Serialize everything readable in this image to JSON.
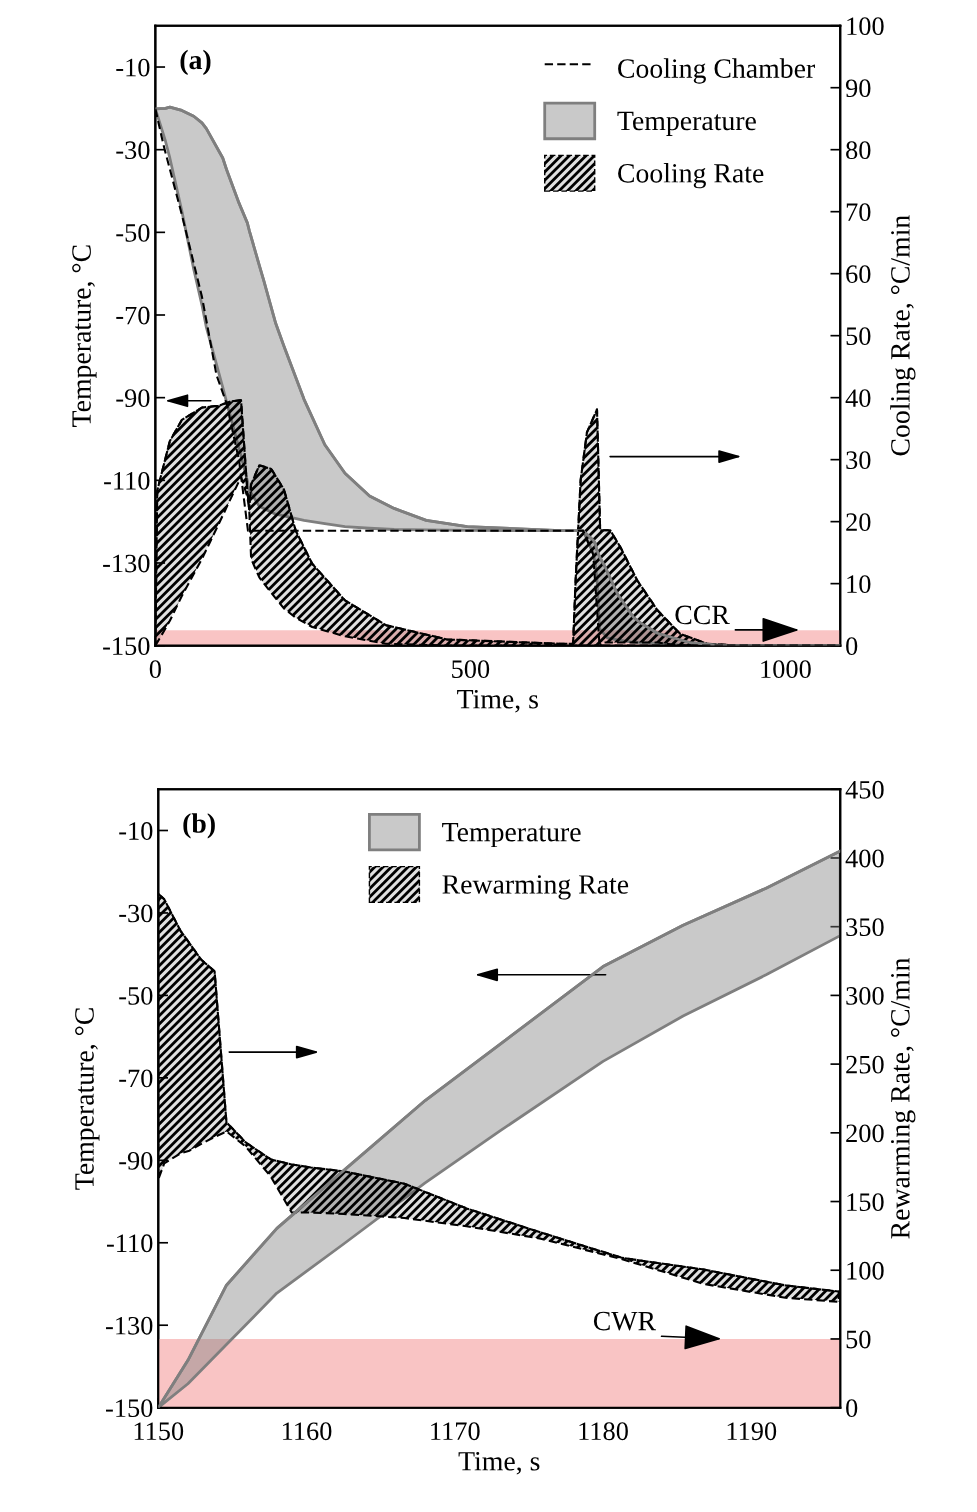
{
  "chart_data": [
    {
      "type": "line",
      "xlabel": "Time, s",
      "ylabel": "Temperature, °C",
      "y2label": "Cooling Rate, °C/min",
      "xlim": [
        0,
        1087
      ],
      "xticks": [
        0,
        {
          "value": 100,
          "label": null
        },
        {
          "value": 200,
          "label": null
        },
        {
          "value": 300,
          "label": null
        },
        {
          "value": 400,
          "label": null
        },
        500,
        {
          "value": 600,
          "label": null
        },
        {
          "value": 700,
          "label": null
        },
        {
          "value": 800,
          "label": null
        },
        {
          "value": 900,
          "label": null
        },
        1000
      ],
      "ylim": [
        -150,
        0
      ],
      "yticks": [
        -150,
        -130,
        -110,
        -90,
        -70,
        -50,
        -30,
        -10
      ],
      "y2lim": [
        0,
        100
      ],
      "y2ticks": [
        0,
        10,
        20,
        30,
        40,
        50,
        60,
        70,
        80,
        90,
        100
      ],
      "grid": false,
      "legend": "top right",
      "bands": [
        {
          "axis": "y2",
          "from": 0,
          "to": 2.5,
          "color": "#f9c4c4"
        }
      ],
      "annotations": [
        "(a)",
        {
          "text": "CCR",
          "x": 1022,
          "y": -146.2
        }
      ],
      "series": [
        {
          "name": "Cooling Rate",
          "axis": "y2",
          "color": "#000000",
          "line_style": "dashed",
          "x": [
            0,
            3,
            23,
            42,
            74,
            100,
            120,
            136,
            146,
            149,
            152,
            165,
            184,
            204,
            223,
            249,
            301,
            366,
            463,
            643,
            663,
            667,
            675,
            685,
            701,
            706,
            708,
            722,
            738,
            765,
            797,
            833,
            876,
            929,
            1087
          ],
          "values": [
            0,
            25,
            33,
            36.4,
            38.4,
            38.7,
            39.4,
            39.6,
            25,
            22,
            26,
            29.1,
            28.5,
            25.2,
            18.5,
            13.2,
            7.3,
            3.3,
            1,
            0.3,
            0.3,
            10.5,
            26.7,
            34.4,
            38.1,
            18.6,
            18.6,
            18.6,
            15.9,
            10.5,
            5.7,
            1.9,
            0.3,
            0,
            0
          ],
          "upper": [
            0,
            25,
            33,
            36.4,
            38.4,
            38.7,
            39.4,
            39.6,
            25,
            22,
            26,
            29.1,
            28.5,
            25.2,
            18.5,
            13.2,
            7.3,
            3.3,
            1,
            0.3,
            0.3,
            10.5,
            26.7,
            34.4,
            38.1,
            18.6,
            18.6,
            18.6,
            15.9,
            10.5,
            5.7,
            1.9,
            0.3,
            0,
            0
          ],
          "lower": [
            0,
            0.5,
            4,
            8,
            14,
            19.5,
            23.8,
            27.2,
            24,
            22,
            14,
            11,
            8.5,
            6,
            4.5,
            3,
            1.5,
            0.3,
            0,
            0,
            0,
            0,
            0,
            0,
            0,
            0,
            0.5,
            0.5,
            0.5,
            0.5,
            0.5,
            0,
            0,
            0,
            0
          ]
        },
        {
          "name": "Temperature",
          "color": "#7f7f7f",
          "x": [
            0,
            16,
            23,
            42,
            61,
            74,
            81,
            107,
            113,
            133,
            146,
            149,
            165,
            172,
            191,
            204,
            236,
            269,
            301,
            340,
            379,
            430,
            495,
            643,
            679,
            695,
            698,
            701,
            705,
            714,
            717,
            733,
            759,
            770,
            797,
            849,
            902,
            1087
          ],
          "values": [
            -20.1,
            -20,
            -19.7,
            -20.5,
            -21.9,
            -23.5,
            -24.9,
            -32,
            -34.8,
            -43,
            -47.7,
            -49.5,
            -58,
            -61.6,
            -72,
            -77.5,
            -90.4,
            -101.4,
            -108.3,
            -113.8,
            -116.8,
            -119.7,
            -121.2,
            -122.2,
            -122.2,
            -124.5,
            -125.2,
            -127,
            -128.5,
            -131,
            -132,
            -137.4,
            -143.2,
            -144.5,
            -147,
            -149.3,
            -150,
            -150
          ],
          "upper": [
            -20.1,
            -20,
            -19.7,
            -20.5,
            -21.9,
            -23.5,
            -24.9,
            -32,
            -34.8,
            -43,
            -47.7,
            -49.5,
            -58,
            -61.6,
            -72,
            -77.5,
            -90.4,
            -101.4,
            -108.3,
            -113.8,
            -116.8,
            -119.7,
            -121.2,
            -122.2,
            -122.2,
            -124.5,
            -125.2,
            -127,
            -128.5,
            -131,
            -132,
            -137.4,
            -143.2,
            -144.5,
            -147,
            -149.3,
            -150,
            -150
          ],
          "lower": [
            -20.1,
            -27.9,
            -32,
            -44.8,
            -59,
            -67.6,
            -73,
            -87.5,
            -91,
            -102.4,
            -110,
            -112.3,
            -116.3,
            -116.8,
            -118.2,
            -118.6,
            -119.7,
            -120.5,
            -121.2,
            -121.6,
            -121.9,
            -122,
            -122.1,
            -122.2,
            -122.2,
            -127.7,
            -130,
            -134.2,
            -145.9,
            -147.5,
            -148.1,
            -148.6,
            -149.2,
            -149.3,
            -149.5,
            -150,
            -150,
            -150
          ]
        },
        {
          "name": "Cooling Chamber",
          "color": "#000000",
          "line_style": "dashed",
          "x": [
            0,
            13,
            42,
            74,
            97,
            113,
            133,
            147,
            679,
            695,
            705,
            1087
          ],
          "values": [
            -20.1,
            -28.9,
            -45.7,
            -65.6,
            -84.5,
            -91.4,
            -105.3,
            -122.2,
            -122.2,
            -128,
            -150,
            -150
          ]
        }
      ]
    },
    {
      "type": "line",
      "xlabel": "Time, s",
      "ylabel": "Temperature, °C",
      "y2label": "Rewarming Rate, °C/min",
      "xlim": [
        1150,
        1196
      ],
      "xticks": [
        1150,
        {
          "value": 1152,
          "label": null
        },
        {
          "value": 1154,
          "label": null
        },
        {
          "value": 1156,
          "label": null
        },
        {
          "value": 1158,
          "label": null
        },
        1160,
        {
          "value": 1162,
          "label": null
        },
        {
          "value": 1164,
          "label": null
        },
        {
          "value": 1166,
          "label": null
        },
        {
          "value": 1168,
          "label": null
        },
        1170,
        {
          "value": 1172,
          "label": null
        },
        {
          "value": 1174,
          "label": null
        },
        {
          "value": 1176,
          "label": null
        },
        {
          "value": 1178,
          "label": null
        },
        1180,
        {
          "value": 1182,
          "label": null
        },
        {
          "value": 1184,
          "label": null
        },
        {
          "value": 1186,
          "label": null
        },
        {
          "value": 1188,
          "label": null
        },
        1190,
        {
          "value": 1192,
          "label": null
        },
        {
          "value": 1194,
          "label": null
        }
      ],
      "ylim": [
        -150,
        0
      ],
      "yticks": [
        -150,
        -130,
        -110,
        -90,
        -70,
        -50,
        -30,
        -10
      ],
      "y2lim": [
        0,
        450
      ],
      "y2ticks": [
        0,
        50,
        100,
        150,
        200,
        250,
        300,
        350,
        400,
        450
      ],
      "grid": false,
      "legend": "top",
      "bands": [
        {
          "axis": "y2",
          "from": 0,
          "to": 50,
          "color": "#f9c4c4"
        }
      ],
      "annotations": [
        "(b)",
        {
          "text": "CWR",
          "x": 1188,
          "y": -133.3
        }
      ],
      "series": [
        {
          "name": "Rewarming Rate",
          "axis": "y2",
          "color": "#000000",
          "line_style": "dashed",
          "x": [
            1150,
            1150.4,
            1151.5,
            1152.1,
            1152.9,
            1153.8,
            1154.6,
            1155.9,
            1157.6,
            1159,
            1160.3,
            1162.5,
            1166.6,
            1170.8,
            1175.8,
            1181.3,
            1186.8,
            1192.3,
            1195.9
          ],
          "values": [
            374,
            370,
            347,
            338,
            326,
            317.5,
            207.6,
            193,
            180.6,
            177,
            174.8,
            172,
            163,
            145,
            127.5,
            109,
            100.5,
            89,
            84.5
          ],
          "upper": [
            374,
            370,
            347,
            338,
            326,
            317.5,
            207.6,
            193,
            180.6,
            177,
            174.8,
            172,
            163,
            145,
            127.5,
            109,
            100.5,
            89,
            84.5
          ],
          "lower": [
            166,
            177.7,
            185,
            187,
            192,
            197,
            201,
            190,
            168,
            142,
            142,
            141,
            138,
            132,
            123,
            108,
            90,
            80,
            77
          ]
        },
        {
          "name": "Temperature",
          "color": "#7f7f7f",
          "x": [
            1150,
            1152,
            1154.6,
            1158,
            1162.5,
            1168,
            1173,
            1180,
            1185.4,
            1191,
            1196
          ],
          "values": [
            -150,
            -138.5,
            -120.3,
            -106.5,
            -92.5,
            -75.5,
            -62,
            -43,
            -33,
            -24,
            -15
          ],
          "upper": [
            -150,
            -138.5,
            -120.3,
            -106.5,
            -92.5,
            -75.5,
            -62,
            -43,
            -33,
            -24,
            -15
          ],
          "lower": [
            -150,
            -144.2,
            -134.7,
            -122.2,
            -110.3,
            -95.5,
            -83,
            -66,
            -55,
            -45,
            -35.5
          ]
        }
      ]
    }
  ]
}
